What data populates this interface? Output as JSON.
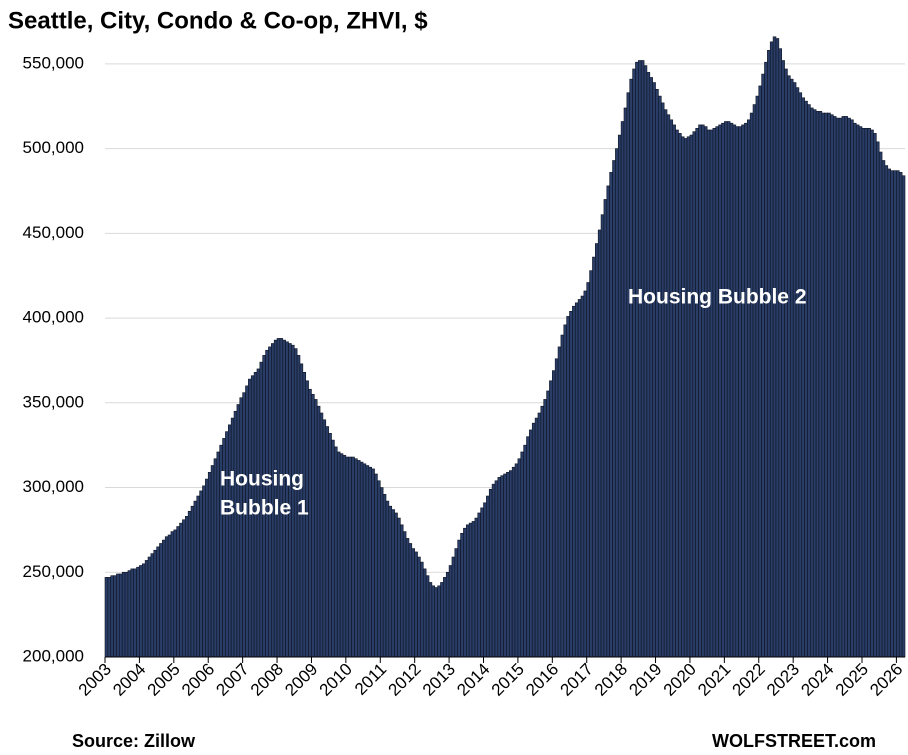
{
  "chart_data": {
    "type": "bar",
    "title": "Seattle, City, Condo & Co-op, ZHVI, $",
    "categories": [
      "2003",
      null,
      null,
      null,
      null,
      null,
      null,
      null,
      null,
      null,
      null,
      null,
      "2004",
      null,
      null,
      null,
      null,
      null,
      null,
      null,
      null,
      null,
      null,
      null,
      "2005",
      null,
      null,
      null,
      null,
      null,
      null,
      null,
      null,
      null,
      null,
      null,
      "2006",
      null,
      null,
      null,
      null,
      null,
      null,
      null,
      null,
      null,
      null,
      null,
      "2007",
      null,
      null,
      null,
      null,
      null,
      null,
      null,
      null,
      null,
      null,
      null,
      "2008",
      null,
      null,
      null,
      null,
      null,
      null,
      null,
      null,
      null,
      null,
      null,
      "2009",
      null,
      null,
      null,
      null,
      null,
      null,
      null,
      null,
      null,
      null,
      null,
      "2010",
      null,
      null,
      null,
      null,
      null,
      null,
      null,
      null,
      null,
      null,
      null,
      "2011",
      null,
      null,
      null,
      null,
      null,
      null,
      null,
      null,
      null,
      null,
      null,
      "2012",
      null,
      null,
      null,
      null,
      null,
      null,
      null,
      null,
      null,
      null,
      null,
      "2013",
      null,
      null,
      null,
      null,
      null,
      null,
      null,
      null,
      null,
      null,
      null,
      "2014",
      null,
      null,
      null,
      null,
      null,
      null,
      null,
      null,
      null,
      null,
      null,
      "2015",
      null,
      null,
      null,
      null,
      null,
      null,
      null,
      null,
      null,
      null,
      null,
      "2016",
      null,
      null,
      null,
      null,
      null,
      null,
      null,
      null,
      null,
      null,
      null,
      "2017",
      null,
      null,
      null,
      null,
      null,
      null,
      null,
      null,
      null,
      null,
      null,
      "2018",
      null,
      null,
      null,
      null,
      null,
      null,
      null,
      null,
      null,
      null,
      null,
      "2019",
      null,
      null,
      null,
      null,
      null,
      null,
      null,
      null,
      null,
      null,
      null,
      "2020",
      null,
      null,
      null,
      null,
      null,
      null,
      null,
      null,
      null,
      null,
      null,
      "2021",
      null,
      null,
      null,
      null,
      null,
      null,
      null,
      null,
      null,
      null,
      null,
      "2022",
      null,
      null,
      null,
      null,
      null,
      null,
      null,
      null,
      null,
      null,
      null,
      "2023",
      null,
      null,
      null,
      null,
      null,
      null,
      null,
      null,
      null,
      null,
      null,
      "2024",
      null,
      null,
      null,
      null,
      null,
      null,
      null,
      null,
      null,
      null,
      null,
      "2025",
      null,
      null,
      null,
      null,
      null,
      null,
      null,
      null,
      null,
      null,
      null,
      "2026",
      null,
      null
    ],
    "values": [
      247000,
      247000,
      248000,
      248000,
      249000,
      249000,
      250000,
      250000,
      251000,
      252000,
      252000,
      253000,
      254000,
      255000,
      257000,
      259000,
      261000,
      263000,
      265000,
      267000,
      269000,
      271000,
      272000,
      274000,
      275000,
      277000,
      279000,
      281000,
      283000,
      286000,
      289000,
      292000,
      295000,
      298000,
      301000,
      305000,
      309000,
      313000,
      317000,
      321000,
      325000,
      329000,
      333000,
      337000,
      341000,
      345000,
      349000,
      353000,
      356000,
      360000,
      364000,
      366000,
      368000,
      370000,
      374000,
      378000,
      381000,
      383000,
      385000,
      387000,
      388000,
      388000,
      387000,
      386000,
      385000,
      384000,
      382000,
      378000,
      373000,
      368000,
      363000,
      358000,
      355000,
      352000,
      348000,
      344000,
      340000,
      336000,
      332000,
      328000,
      324000,
      321000,
      320000,
      319000,
      318000,
      318000,
      318000,
      317000,
      316000,
      315000,
      314000,
      313000,
      312000,
      311000,
      308000,
      304000,
      300000,
      296000,
      292000,
      289000,
      287000,
      285000,
      282000,
      278000,
      274000,
      270000,
      267000,
      264000,
      262000,
      259000,
      256000,
      252000,
      248000,
      244000,
      242000,
      241000,
      242000,
      244000,
      247000,
      250000,
      254000,
      259000,
      264000,
      269000,
      273000,
      276000,
      278000,
      279000,
      280000,
      282000,
      285000,
      288000,
      291000,
      295000,
      299000,
      302000,
      304000,
      306000,
      307000,
      308000,
      309000,
      310000,
      312000,
      314000,
      317000,
      321000,
      325000,
      330000,
      334000,
      338000,
      341000,
      344000,
      348000,
      352000,
      357000,
      363000,
      369000,
      376000,
      383000,
      390000,
      396000,
      401000,
      404000,
      407000,
      409000,
      411000,
      413000,
      416000,
      421000,
      428000,
      436000,
      444000,
      452000,
      461000,
      470000,
      478000,
      486000,
      493000,
      500000,
      508000,
      516000,
      524000,
      533000,
      541000,
      547000,
      551000,
      552000,
      552000,
      549000,
      545000,
      542000,
      539000,
      535000,
      531000,
      527000,
      523000,
      520000,
      517000,
      514000,
      511000,
      509000,
      507000,
      506000,
      507000,
      508000,
      510000,
      512000,
      514000,
      514000,
      513000,
      511000,
      511000,
      512000,
      513000,
      514000,
      515000,
      516000,
      516000,
      515000,
      514000,
      513000,
      513000,
      514000,
      515000,
      517000,
      521000,
      526000,
      531000,
      537000,
      544000,
      551000,
      558000,
      563000,
      566000,
      565000,
      559000,
      552000,
      547000,
      543000,
      541000,
      539000,
      536000,
      533000,
      530000,
      528000,
      526000,
      524000,
      523000,
      522000,
      522000,
      521000,
      521000,
      521000,
      520000,
      519000,
      518000,
      518000,
      519000,
      519000,
      518000,
      517000,
      515000,
      514000,
      513000,
      512000,
      512000,
      512000,
      511000,
      509000,
      504000,
      498000,
      493000,
      490000,
      488000,
      487000,
      487000,
      487000,
      486000,
      484000
    ],
    "color": "#2a3d66",
    "ylim": [
      200000,
      570000
    ],
    "yticks": [
      {
        "value": 200000,
        "label": "200,000"
      },
      {
        "value": 250000,
        "label": "250,000"
      },
      {
        "value": 300000,
        "label": "300,000"
      },
      {
        "value": 350000,
        "label": "350,000"
      },
      {
        "value": 400000,
        "label": "400,000"
      },
      {
        "value": 450000,
        "label": "450,000"
      },
      {
        "value": 500000,
        "label": "500,000"
      },
      {
        "value": 550000,
        "label": "550,000"
      }
    ],
    "grid": true,
    "annotations": [
      [
        "Housing",
        "Bubble 1"
      ],
      [
        "Housing Bubble 2"
      ]
    ],
    "source": "Source: Zillow",
    "credit": "WOLFSTREET.com"
  }
}
